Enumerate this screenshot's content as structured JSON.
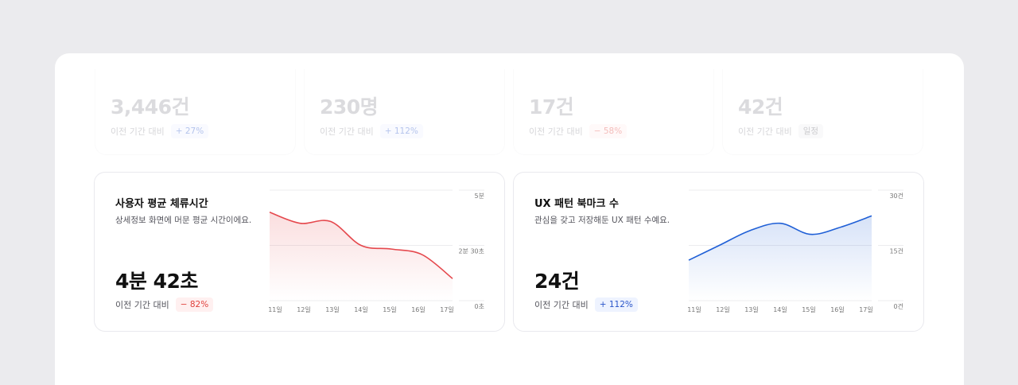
{
  "stats": [
    {
      "value": "3,446건",
      "compare_label": "이전 기간 대비",
      "change": "+ 27%",
      "trend": "up"
    },
    {
      "value": "230명",
      "compare_label": "이전 기간 대비",
      "change": "+ 112%",
      "trend": "up"
    },
    {
      "value": "17건",
      "compare_label": "이전 기간 대비",
      "change": "− 58%",
      "trend": "down"
    },
    {
      "value": "42건",
      "compare_label": "이전 기간 대비",
      "change": "일정",
      "trend": "flat"
    }
  ],
  "cards": [
    {
      "title": "사용자 평균 체류시간",
      "description": "상세정보 화면에 머문 평균 시간이에요.",
      "value": "4분 42초",
      "compare_label": "이전 기간 대비",
      "change": "− 82%",
      "trend": "down",
      "color": "#e5484d"
    },
    {
      "title": "UX 패턴 북마크 수",
      "description": "관심을 갖고 저장해둔 UX 패턴 수예요.",
      "value": "24건",
      "compare_label": "이전 기간 대비",
      "change": "+ 112%",
      "trend": "up",
      "color": "#1f5fd6"
    }
  ],
  "chart_data": [
    {
      "type": "area",
      "x": [
        "11일",
        "12일",
        "13일",
        "14일",
        "15일",
        "16일",
        "17일"
      ],
      "y_ticks": [
        "5분",
        "2분 30초",
        "0초"
      ],
      "ylim": [
        0,
        300
      ],
      "series": [
        {
          "values": [
            240,
            210,
            215,
            150,
            140,
            125,
            60
          ]
        }
      ]
    },
    {
      "type": "area",
      "x": [
        "11일",
        "12일",
        "13일",
        "14일",
        "15일",
        "16일",
        "17일"
      ],
      "y_ticks": [
        "30건",
        "15건",
        "0건"
      ],
      "ylim": [
        0,
        30
      ],
      "series": [
        {
          "values": [
            11,
            15,
            19,
            21,
            18,
            20,
            23
          ]
        }
      ]
    }
  ]
}
